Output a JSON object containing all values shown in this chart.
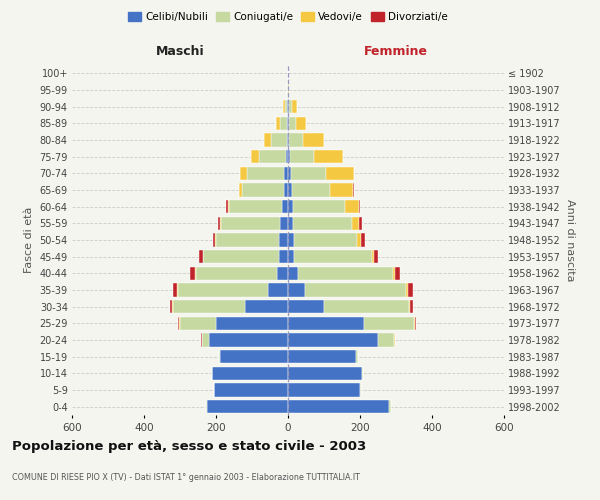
{
  "age_groups": [
    "0-4",
    "5-9",
    "10-14",
    "15-19",
    "20-24",
    "25-29",
    "30-34",
    "35-39",
    "40-44",
    "45-49",
    "50-54",
    "55-59",
    "60-64",
    "65-69",
    "70-74",
    "75-79",
    "80-84",
    "85-89",
    "90-94",
    "95-99",
    "100+"
  ],
  "birth_years": [
    "1998-2002",
    "1993-1997",
    "1988-1992",
    "1983-1987",
    "1978-1982",
    "1973-1977",
    "1968-1972",
    "1963-1967",
    "1958-1962",
    "1953-1957",
    "1948-1952",
    "1943-1947",
    "1938-1942",
    "1933-1937",
    "1928-1932",
    "1923-1927",
    "1918-1922",
    "1913-1917",
    "1908-1912",
    "1903-1907",
    "≤ 1902"
  ],
  "male_celibe": [
    225,
    205,
    210,
    190,
    220,
    200,
    120,
    55,
    30,
    25,
    25,
    22,
    18,
    12,
    10,
    6,
    4,
    4,
    2,
    1,
    0
  ],
  "male_coniugato": [
    2,
    0,
    1,
    2,
    20,
    100,
    200,
    250,
    225,
    210,
    175,
    165,
    145,
    115,
    105,
    75,
    42,
    18,
    7,
    1,
    0
  ],
  "male_vedovo": [
    0,
    0,
    0,
    0,
    0,
    2,
    2,
    2,
    2,
    2,
    2,
    3,
    4,
    8,
    18,
    22,
    22,
    12,
    4,
    1,
    0
  ],
  "male_divorziato": [
    0,
    0,
    0,
    0,
    2,
    4,
    7,
    12,
    14,
    9,
    7,
    5,
    4,
    0,
    0,
    0,
    0,
    0,
    0,
    0,
    0
  ],
  "female_celibe": [
    280,
    200,
    205,
    190,
    250,
    210,
    100,
    48,
    28,
    18,
    18,
    14,
    13,
    10,
    8,
    5,
    4,
    3,
    2,
    0,
    0
  ],
  "female_coniugato": [
    5,
    2,
    2,
    4,
    45,
    140,
    235,
    280,
    265,
    215,
    175,
    165,
    145,
    108,
    98,
    68,
    38,
    18,
    8,
    1,
    0
  ],
  "female_vedovo": [
    0,
    0,
    0,
    0,
    1,
    2,
    3,
    4,
    5,
    7,
    9,
    18,
    38,
    62,
    78,
    80,
    58,
    28,
    14,
    2,
    0
  ],
  "female_divorziato": [
    0,
    0,
    0,
    0,
    2,
    4,
    9,
    14,
    14,
    11,
    11,
    9,
    4,
    2,
    0,
    0,
    0,
    0,
    0,
    0,
    0
  ],
  "color_celibe": "#4472C4",
  "color_coniugato": "#C5D9A0",
  "color_vedovo": "#F5C842",
  "color_divorziato": "#C0232A",
  "title": "Popolazione per età, sesso e stato civile - 2003",
  "subtitle": "COMUNE DI RIESE PIO X (TV) - Dati ISTAT 1° gennaio 2003 - Elaborazione TUTTITALIA.IT",
  "xlabel_left": "Maschi",
  "xlabel_right": "Femmine",
  "ylabel_left": "Fasce di età",
  "ylabel_right": "Anni di nascita",
  "xlim": 600,
  "background_color": "#f5f5f0"
}
